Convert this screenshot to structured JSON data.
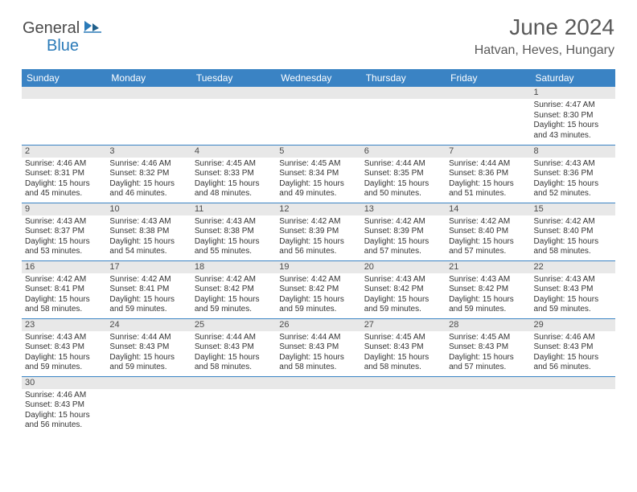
{
  "logo": {
    "part1": "General",
    "part2": "Blue"
  },
  "title": "June 2024",
  "location": "Hatvan, Heves, Hungary",
  "colors": {
    "header_bg": "#3a83c4",
    "header_text": "#ffffff",
    "daynum_bg": "#e8e8e8",
    "cell_border": "#3a83c4",
    "title_color": "#595959",
    "logo_dark": "#4a4a4a",
    "logo_blue": "#2a7ab8"
  },
  "daysOfWeek": [
    "Sunday",
    "Monday",
    "Tuesday",
    "Wednesday",
    "Thursday",
    "Friday",
    "Saturday"
  ],
  "weeks": [
    [
      null,
      null,
      null,
      null,
      null,
      null,
      {
        "n": 1,
        "rise": "4:47 AM",
        "set": "8:30 PM",
        "dlh": 15,
        "dlm": 43
      }
    ],
    [
      {
        "n": 2,
        "rise": "4:46 AM",
        "set": "8:31 PM",
        "dlh": 15,
        "dlm": 45
      },
      {
        "n": 3,
        "rise": "4:46 AM",
        "set": "8:32 PM",
        "dlh": 15,
        "dlm": 46
      },
      {
        "n": 4,
        "rise": "4:45 AM",
        "set": "8:33 PM",
        "dlh": 15,
        "dlm": 48
      },
      {
        "n": 5,
        "rise": "4:45 AM",
        "set": "8:34 PM",
        "dlh": 15,
        "dlm": 49
      },
      {
        "n": 6,
        "rise": "4:44 AM",
        "set": "8:35 PM",
        "dlh": 15,
        "dlm": 50
      },
      {
        "n": 7,
        "rise": "4:44 AM",
        "set": "8:36 PM",
        "dlh": 15,
        "dlm": 51
      },
      {
        "n": 8,
        "rise": "4:43 AM",
        "set": "8:36 PM",
        "dlh": 15,
        "dlm": 52
      }
    ],
    [
      {
        "n": 9,
        "rise": "4:43 AM",
        "set": "8:37 PM",
        "dlh": 15,
        "dlm": 53
      },
      {
        "n": 10,
        "rise": "4:43 AM",
        "set": "8:38 PM",
        "dlh": 15,
        "dlm": 54
      },
      {
        "n": 11,
        "rise": "4:43 AM",
        "set": "8:38 PM",
        "dlh": 15,
        "dlm": 55
      },
      {
        "n": 12,
        "rise": "4:42 AM",
        "set": "8:39 PM",
        "dlh": 15,
        "dlm": 56
      },
      {
        "n": 13,
        "rise": "4:42 AM",
        "set": "8:39 PM",
        "dlh": 15,
        "dlm": 57
      },
      {
        "n": 14,
        "rise": "4:42 AM",
        "set": "8:40 PM",
        "dlh": 15,
        "dlm": 57
      },
      {
        "n": 15,
        "rise": "4:42 AM",
        "set": "8:40 PM",
        "dlh": 15,
        "dlm": 58
      }
    ],
    [
      {
        "n": 16,
        "rise": "4:42 AM",
        "set": "8:41 PM",
        "dlh": 15,
        "dlm": 58
      },
      {
        "n": 17,
        "rise": "4:42 AM",
        "set": "8:41 PM",
        "dlh": 15,
        "dlm": 59
      },
      {
        "n": 18,
        "rise": "4:42 AM",
        "set": "8:42 PM",
        "dlh": 15,
        "dlm": 59
      },
      {
        "n": 19,
        "rise": "4:42 AM",
        "set": "8:42 PM",
        "dlh": 15,
        "dlm": 59
      },
      {
        "n": 20,
        "rise": "4:43 AM",
        "set": "8:42 PM",
        "dlh": 15,
        "dlm": 59
      },
      {
        "n": 21,
        "rise": "4:43 AM",
        "set": "8:42 PM",
        "dlh": 15,
        "dlm": 59
      },
      {
        "n": 22,
        "rise": "4:43 AM",
        "set": "8:43 PM",
        "dlh": 15,
        "dlm": 59
      }
    ],
    [
      {
        "n": 23,
        "rise": "4:43 AM",
        "set": "8:43 PM",
        "dlh": 15,
        "dlm": 59
      },
      {
        "n": 24,
        "rise": "4:44 AM",
        "set": "8:43 PM",
        "dlh": 15,
        "dlm": 59
      },
      {
        "n": 25,
        "rise": "4:44 AM",
        "set": "8:43 PM",
        "dlh": 15,
        "dlm": 58
      },
      {
        "n": 26,
        "rise": "4:44 AM",
        "set": "8:43 PM",
        "dlh": 15,
        "dlm": 58
      },
      {
        "n": 27,
        "rise": "4:45 AM",
        "set": "8:43 PM",
        "dlh": 15,
        "dlm": 58
      },
      {
        "n": 28,
        "rise": "4:45 AM",
        "set": "8:43 PM",
        "dlh": 15,
        "dlm": 57
      },
      {
        "n": 29,
        "rise": "4:46 AM",
        "set": "8:43 PM",
        "dlh": 15,
        "dlm": 56
      }
    ],
    [
      {
        "n": 30,
        "rise": "4:46 AM",
        "set": "8:43 PM",
        "dlh": 15,
        "dlm": 56
      },
      null,
      null,
      null,
      null,
      null,
      null
    ]
  ],
  "labels": {
    "sunrise": "Sunrise:",
    "sunset": "Sunset:",
    "daylight_prefix": "Daylight:",
    "hours_word": "hours",
    "and_word": "and",
    "minutes_word": "minutes."
  }
}
